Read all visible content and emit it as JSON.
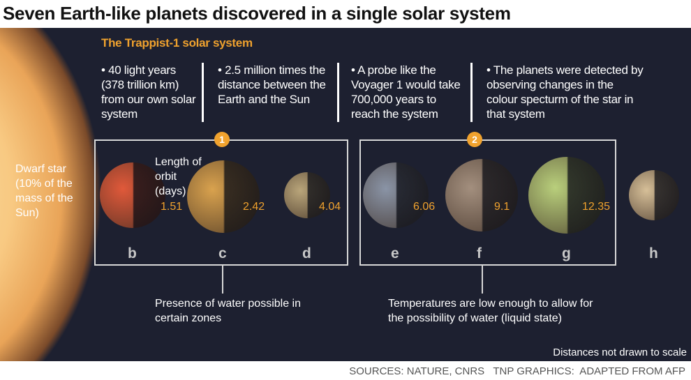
{
  "title": "Seven Earth-like planets discovered in a single solar system",
  "subtitle": "The Trappist-1 solar system",
  "facts": [
    "• 40 light years (378 trillion km) from  our own solar system",
    "• 2.5 million times the distance between the Earth and the Sun",
    "• A probe like the Voyager 1 would take 700,000 years to reach the system",
    "• The planets were detected by observing changes in the colour specturm of the star in that system"
  ],
  "star_label": "Dwarf star (10% of the mass of the Sun)",
  "orbit_label": "Length of orbit (days)",
  "groups": [
    {
      "number": "1",
      "note": "Presence of water possible in certain zones"
    },
    {
      "number": "2",
      "note": "Temperatures are low enough to allow for the possibility of  water (liquid state)"
    }
  ],
  "planets": [
    {
      "letter": "b",
      "orbit": "1.51",
      "color": "#e0593a"
    },
    {
      "letter": "c",
      "orbit": "2.42",
      "color": "#d9a24e"
    },
    {
      "letter": "d",
      "orbit": "4.04",
      "color": "#b9a57a"
    },
    {
      "letter": "e",
      "orbit": "6.06",
      "color": "#8a94a6"
    },
    {
      "letter": "f",
      "orbit": "9.1",
      "color": "#a38f7e"
    },
    {
      "letter": "g",
      "orbit": "12.35",
      "color": "#b9cf7c"
    },
    {
      "letter": "h",
      "orbit": "",
      "color": "#d6bf98"
    }
  ],
  "scale_note": "Distances not drawn to scale",
  "sources": "SOURCES: NATURE, CNRS   TNP GRAPHICS:  ADAPTED FROM AFP",
  "accent": "#f0a22e"
}
